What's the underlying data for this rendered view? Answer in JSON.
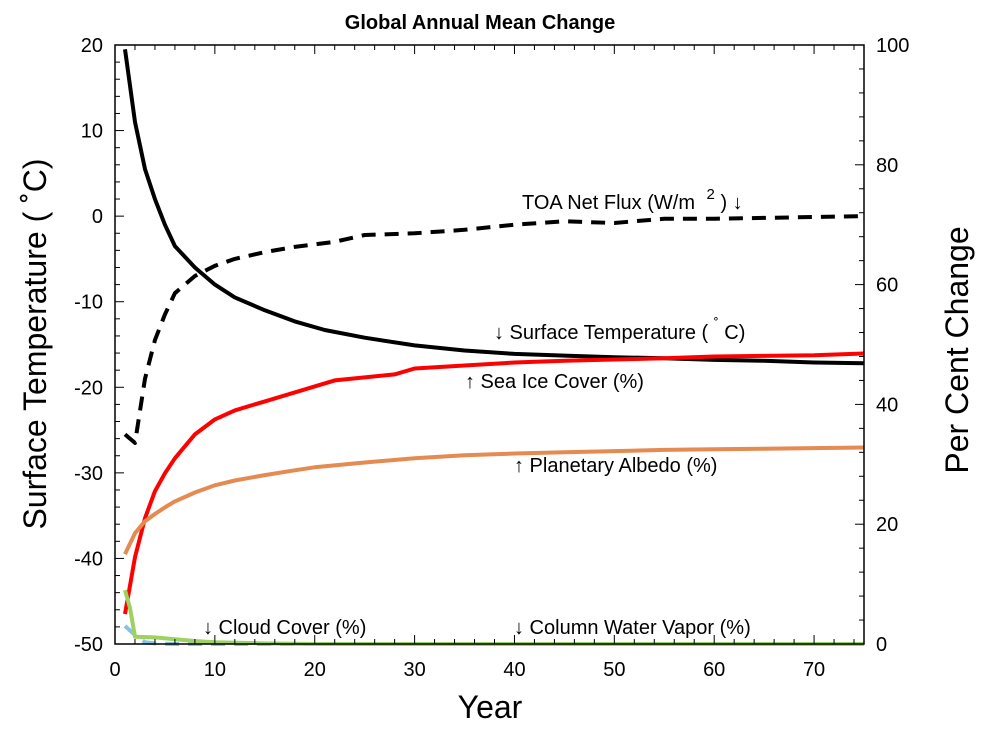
{
  "chart_data": {
    "type": "line",
    "title": "Global Annual Mean Change",
    "xlabel": "Year",
    "ylabel_left": "Surface Temperature (  ˚C)",
    "ylabel_right": "Per Cent Change",
    "xlim": [
      0,
      75
    ],
    "ylim_left": [
      -50,
      20
    ],
    "ylim_right": [
      0,
      100
    ],
    "xticks": [
      0,
      10,
      20,
      30,
      40,
      50,
      60,
      70
    ],
    "yticks_left": [
      20,
      10,
      0,
      -10,
      -20,
      -30,
      -40,
      -50
    ],
    "yticks_right": [
      100,
      80,
      60,
      40,
      20,
      0
    ],
    "grid": false,
    "series": [
      {
        "name": "Surface Temperature (˚C)",
        "axis": "left",
        "color": "#000000",
        "dash": false,
        "x": [
          1,
          2,
          3,
          4,
          5,
          6,
          8,
          10,
          12,
          15,
          18,
          21,
          25,
          30,
          35,
          40,
          45,
          50,
          55,
          60,
          65,
          70,
          75
        ],
        "y": [
          19.5,
          11,
          5.5,
          2,
          -1,
          -3.5,
          -6,
          -8,
          -9.5,
          -11,
          -12.3,
          -13.3,
          -14.2,
          -15.1,
          -15.7,
          -16.1,
          -16.3,
          -16.5,
          -16.6,
          -16.8,
          -16.9,
          -17.1,
          -17.2
        ]
      },
      {
        "name": "TOA Net Flux (W/m2)",
        "axis": "left",
        "color": "#000000",
        "dash": true,
        "x": [
          1,
          2,
          3,
          4,
          5,
          6,
          7,
          8,
          10,
          12,
          15,
          18,
          22,
          25,
          30,
          35,
          40,
          45,
          50,
          55,
          60,
          65,
          70,
          75
        ],
        "y": [
          -25.5,
          -26.5,
          -19,
          -14.5,
          -11.5,
          -9,
          -8,
          -7,
          -5.8,
          -5,
          -4.2,
          -3.6,
          -3,
          -2.2,
          -2,
          -1.6,
          -1,
          -0.6,
          -0.8,
          -0.3,
          -0.3,
          -0.2,
          -0.1,
          0
        ]
      },
      {
        "name": "Sea Ice Cover (%)",
        "axis": "right",
        "color": "#ff0000",
        "dash": false,
        "x": [
          1,
          2,
          3,
          4,
          5,
          6,
          7,
          8,
          10,
          12,
          15,
          18,
          20,
          22,
          25,
          28,
          30,
          35,
          40,
          45,
          50,
          55,
          60,
          65,
          70,
          75
        ],
        "y": [
          5,
          14.5,
          21,
          25.5,
          28.5,
          31,
          33,
          35,
          37.5,
          39,
          40.5,
          42,
          43,
          44,
          44.5,
          45,
          46,
          46.5,
          47,
          47.3,
          47.5,
          47.7,
          48,
          48.1,
          48.2,
          48.5
        ]
      },
      {
        "name": "Planetary Albedo (%)",
        "axis": "right",
        "color": "#e58a50",
        "dash": false,
        "x": [
          1,
          2,
          3,
          4,
          5,
          6,
          8,
          10,
          12,
          15,
          18,
          20,
          25,
          30,
          35,
          40,
          45,
          50,
          55,
          60,
          65,
          70,
          75
        ],
        "y": [
          15,
          18.5,
          20.5,
          21.7,
          22.8,
          23.8,
          25.3,
          26.5,
          27.3,
          28.2,
          29,
          29.5,
          30.3,
          31,
          31.5,
          31.8,
          32,
          32.2,
          32.4,
          32.5,
          32.6,
          32.7,
          32.8
        ]
      },
      {
        "name": "Cloud Cover (%)",
        "axis": "right",
        "color": "#88c0e8",
        "dash": true,
        "x": [
          1,
          2,
          3,
          4,
          6,
          8,
          10,
          15,
          20
        ],
        "y": [
          3,
          1.5,
          0.3,
          0.1,
          0,
          0,
          0,
          0,
          0
        ]
      },
      {
        "name": "Column Water Vapor (%)",
        "axis": "right",
        "color": "#9ed260",
        "dash": false,
        "x": [
          1,
          1.5,
          2,
          4,
          6,
          8,
          10,
          15,
          20,
          30,
          40,
          50,
          60,
          70,
          75
        ],
        "y": [
          9,
          6,
          1.2,
          1.1,
          0.8,
          0.5,
          0.3,
          0.1,
          0,
          0,
          0,
          0,
          0,
          0,
          0
        ]
      }
    ],
    "annotations": [
      {
        "id": "toa",
        "text": "TOA Net Flux (W/m",
        "sup": "2",
        "tail": ") ↓"
      },
      {
        "id": "surf",
        "text": "↓ Surface Temperature (  ",
        "sup": "˚",
        "tail": "C)"
      },
      {
        "id": "seaice",
        "text": "↑ Sea Ice Cover (%)"
      },
      {
        "id": "albedo",
        "text": "↑ Planetary Albedo (%)"
      },
      {
        "id": "cloud",
        "text": "↓ Cloud Cover (%)"
      },
      {
        "id": "cwv",
        "text": "↓ Column Water Vapor (%)"
      }
    ]
  }
}
